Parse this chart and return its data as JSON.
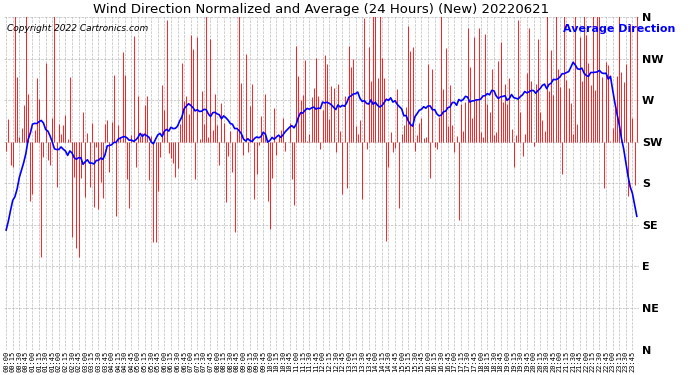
{
  "title": "Wind Direction Normalized and Average (24 Hours) (New) 20220621",
  "copyright": "Copyright 2022 Cartronics.com",
  "legend_label": "Average Direction",
  "ytick_labels": [
    "N",
    "NW",
    "W",
    "SW",
    "S",
    "SE",
    "E",
    "NE",
    "N"
  ],
  "ytick_values": [
    360,
    315,
    270,
    225,
    180,
    135,
    90,
    45,
    0
  ],
  "ylim": [
    0,
    360
  ],
  "bar_color": "#ff0000",
  "avg_color": "#0000ff",
  "background_color": "#ffffff",
  "grid_color": "#aaaaaa",
  "title_color": "#000000",
  "copyright_color": "#000000",
  "legend_color": "#0000ff",
  "figwidth": 6.9,
  "figheight": 3.75,
  "dpi": 100
}
